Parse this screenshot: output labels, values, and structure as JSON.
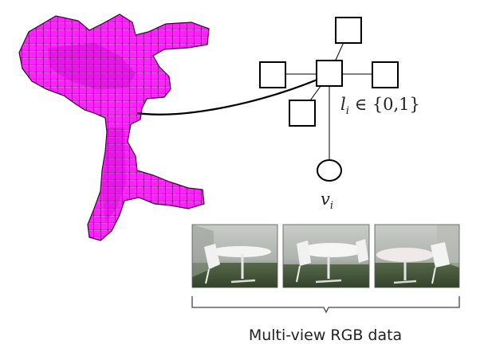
{
  "graph": {
    "label_math_var": "l",
    "label_math_sub": "i",
    "label_math_rest": " ∈ {0,1}",
    "node_label_var": "v",
    "node_label_sub": "i"
  },
  "images": [
    {
      "name": "view-1"
    },
    {
      "name": "view-2"
    },
    {
      "name": "view-3"
    }
  ],
  "caption": "Multi-view RGB data",
  "colors": {
    "voxel_fill": "#ff00ff",
    "voxel_stroke": "#6b006b",
    "line": "#000000"
  }
}
